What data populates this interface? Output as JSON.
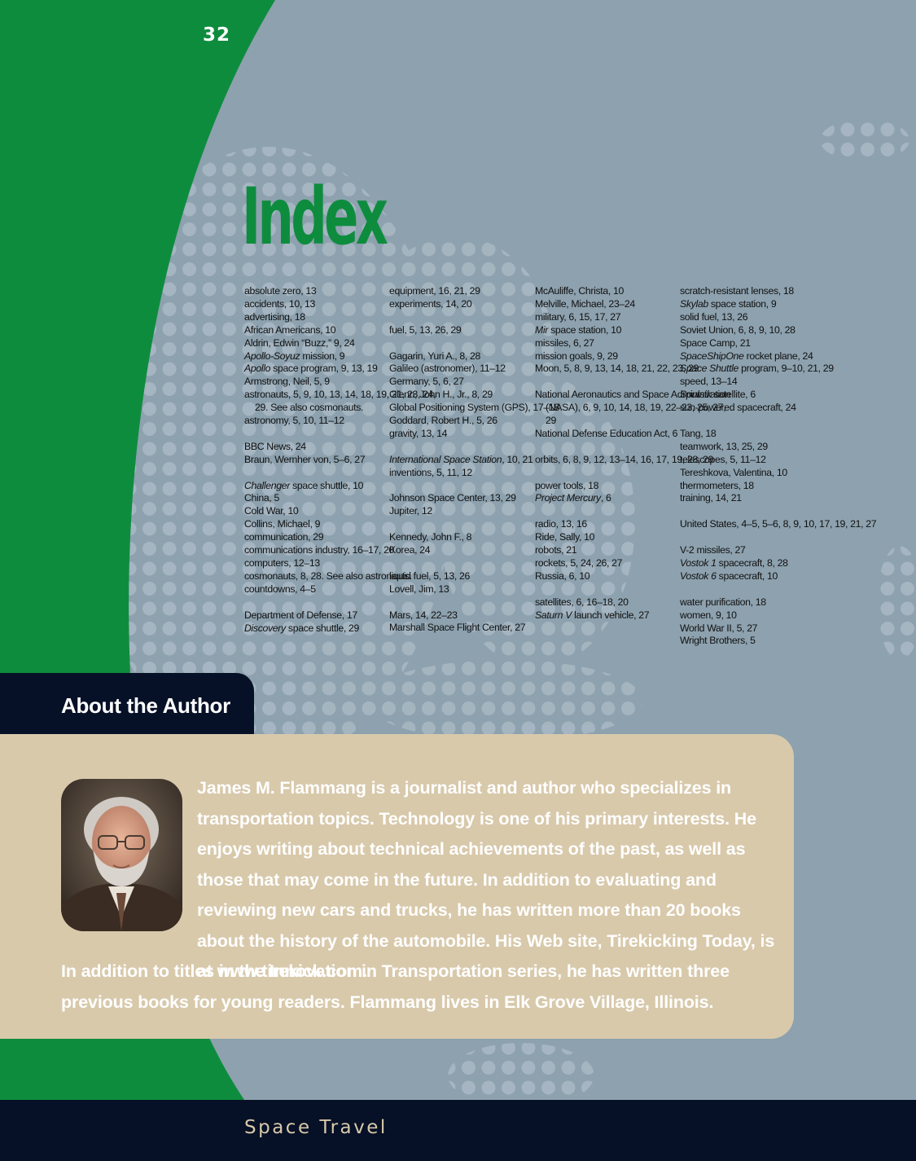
{
  "page_number": "32",
  "index": {
    "title": "Index",
    "columns": [
      [
        {
          "t": "absolute zero, 13"
        },
        {
          "t": "accidents, 10, 13"
        },
        {
          "t": "advertising, 18"
        },
        {
          "t": "African Americans, 10"
        },
        {
          "t": "Aldrin, Edwin “Buzz,” 9, 24"
        },
        {
          "i": "Apollo-Soyuz",
          "t": " mission, 9"
        },
        {
          "i": "Apollo",
          "t": " space program, 9, 13, 19"
        },
        {
          "t": "Armstrong, Neil, 5, 9"
        },
        {
          "t": "astronauts, 5, 9, 10, 13, 14, 18, 19, 21, 23, 24, 29. See also cosmonauts."
        },
        {
          "t": "astronomy, 5, 10, 11–12"
        },
        {
          "gap": true
        },
        {
          "t": "BBC News, 24"
        },
        {
          "t": "Braun, Wernher von, 5–6, 27"
        },
        {
          "gap": true
        },
        {
          "i": "Challenger",
          "t": " space shuttle, 10"
        },
        {
          "t": "China, 5"
        },
        {
          "t": "Cold War, 10"
        },
        {
          "t": "Collins, Michael, 9"
        },
        {
          "t": "communication, 29"
        },
        {
          "t": "communications industry, 16–17, 20"
        },
        {
          "t": "computers, 12–13"
        },
        {
          "t": "cosmonauts, 8, 28. See also astronauts."
        },
        {
          "t": "countdowns, 4–5"
        },
        {
          "gap": true
        },
        {
          "t": "Department of Defense, 17"
        },
        {
          "i": "Discovery",
          "t": " space shuttle, 29"
        }
      ],
      [
        {
          "t": "equipment, 16, 21, 29"
        },
        {
          "t": "experiments, 14, 20"
        },
        {
          "gap": true
        },
        {
          "t": "fuel, 5, 13, 26, 29"
        },
        {
          "gap": true
        },
        {
          "t": "Gagarin, Yuri A., 8, 28"
        },
        {
          "t": "Galileo (astronomer), 11–12"
        },
        {
          "t": "Germany, 5, 6, 27"
        },
        {
          "t": "Glenn, John H., Jr., 8, 29"
        },
        {
          "t": "Global Positioning System (GPS), 17–18"
        },
        {
          "t": "Goddard, Robert H., 5, 26"
        },
        {
          "t": "gravity, 13, 14"
        },
        {
          "gap": true
        },
        {
          "i": "International Space Station",
          "t": ", 10, 21"
        },
        {
          "t": "inventions, 5, 11, 12"
        },
        {
          "gap": true
        },
        {
          "t": "Johnson Space Center, 13, 29"
        },
        {
          "t": "Jupiter, 12"
        },
        {
          "gap": true
        },
        {
          "t": "Kennedy, John F., 8"
        },
        {
          "t": "Korea, 24"
        },
        {
          "gap": true
        },
        {
          "t": "liquid fuel, 5, 13, 26"
        },
        {
          "t": "Lovell, Jim, 13"
        },
        {
          "gap": true
        },
        {
          "t": "Mars, 14, 22–23"
        },
        {
          "t": "Marshall Space Flight Center, 27"
        }
      ],
      [
        {
          "t": "McAuliffe, Christa, 10"
        },
        {
          "t": "Melville, Michael, 23–24"
        },
        {
          "t": "military, 6, 15, 17, 27"
        },
        {
          "i": "Mir",
          "t": " space station, 10"
        },
        {
          "t": "missiles, 6, 27"
        },
        {
          "t": "mission goals, 9, 29"
        },
        {
          "t": "Moon, 5, 8, 9, 13, 14, 18, 21, 22, 23, 29"
        },
        {
          "gap": true
        },
        {
          "t": "National Aeronautics and Space Administration (NASA), 6, 9, 10, 14, 18, 19, 22–23, 25, 27, 29"
        },
        {
          "t": "National Defense Education Act, 6"
        },
        {
          "gap": true
        },
        {
          "t": "orbits, 6, 8, 9, 12, 13–14, 16, 17, 19, 28, 29"
        },
        {
          "gap": true
        },
        {
          "t": "power tools, 18"
        },
        {
          "i": "Project Mercury",
          "t": ", 6"
        },
        {
          "gap": true
        },
        {
          "t": "radio, 13, 16"
        },
        {
          "t": "Ride, Sally, 10"
        },
        {
          "t": "robots, 21"
        },
        {
          "t": "rockets, 5, 24, 26, 27"
        },
        {
          "t": "Russia, 6, 10"
        },
        {
          "gap": true
        },
        {
          "t": "satellites, 6, 16–18, 20"
        },
        {
          "i": "Saturn V",
          "t": " launch vehicle, 27"
        }
      ],
      [
        {
          "t": "scratch-resistant lenses, 18"
        },
        {
          "i": "Skylab",
          "t": " space station, 9"
        },
        {
          "t": "solid fuel, 13, 26"
        },
        {
          "t": "Soviet Union, 6, 8, 9, 10, 28"
        },
        {
          "t": "Space Camp, 21"
        },
        {
          "i": "SpaceShipOne",
          "t": " rocket plane, 24"
        },
        {
          "i": "Space Shuttle",
          "t": " program, 9–10, 21, 29"
        },
        {
          "t": "speed, 13–14"
        },
        {
          "i": "Sputnik",
          "t": " satellite, 6"
        },
        {
          "t": "sun-powered spacecraft, 24"
        },
        {
          "gap": true
        },
        {
          "t": "Tang, 18"
        },
        {
          "t": "teamwork, 13, 25, 29"
        },
        {
          "t": "telescopes, 5, 11–12"
        },
        {
          "t": "Tereshkova, Valentina, 10"
        },
        {
          "t": "thermometers, 18"
        },
        {
          "t": "training, 14, 21"
        },
        {
          "gap": true
        },
        {
          "t": "United States, 4–5, 5–6, 8, 9, 10, 17, 19, 21, 27"
        },
        {
          "gap": true
        },
        {
          "t": "V-2 missiles, 27"
        },
        {
          "i": "Vostok 1",
          "t": " spacecraft, 8, 28"
        },
        {
          "i": "Vostok 6",
          "t": " spacecraft, 10"
        },
        {
          "gap": true
        },
        {
          "t": "water purification, 18"
        },
        {
          "t": "women, 9, 10"
        },
        {
          "t": "World War II, 5, 27"
        },
        {
          "t": "Wright Brothers, 5"
        }
      ]
    ]
  },
  "about": {
    "heading": "About the Author",
    "bio": "James M. Flammang is a journalist and author who specializes in transportation topics. Technology is one of his primary interests. He enjoys writing about technical achievements of the past, as well as those that may come in the future. In addition to evaluating and reviewing new cars and trucks, he has written more than 20 books about the history of the automobile. His Web site, Tirekicking Today, is at www.tirekick.com.",
    "bio_continued": "In addition to titles in the Innovation in Transportation series, he has written three previous books for young readers. Flammang lives in Elk Grove Village, Illinois."
  },
  "footer": {
    "series_title": "Space Travel"
  },
  "colors": {
    "green": "#0e8c3e",
    "slate": "#8da1ae",
    "navy": "#061026",
    "tan": "#d8c9ab"
  }
}
